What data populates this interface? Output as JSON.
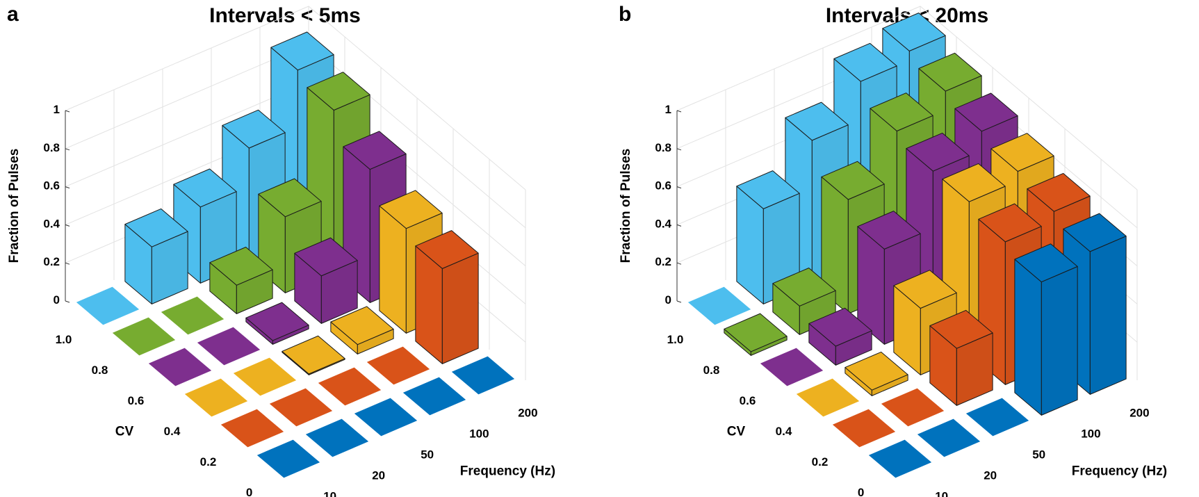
{
  "chart_data": [
    {
      "type": "bar3d",
      "panel_label": "a",
      "title": "Intervals < 5ms",
      "xlabel": "Frequency (Hz)",
      "ylabel": "CV",
      "zlabel": "Fraction of Pulses",
      "x_categories": [
        "10",
        "20",
        "50",
        "100",
        "200"
      ],
      "y_categories": [
        "1.0",
        "0.8",
        "0.6",
        "0.4",
        "0.2",
        "0"
      ],
      "z_ticks": [
        "0",
        "0.2",
        "0.4",
        "0.6",
        "0.8",
        "1"
      ],
      "zlim": [
        0,
        1
      ],
      "grid": true,
      "values": [
        [
          0,
          0.3,
          0.4,
          0.6,
          0.9
        ],
        [
          0,
          0,
          0.15,
          0.4,
          0.85
        ],
        [
          0,
          0,
          0.02,
          0.25,
          0.7
        ],
        [
          0,
          0,
          0.005,
          0.05,
          0.55
        ],
        [
          0,
          0,
          0,
          0,
          0.5
        ],
        [
          0,
          0,
          0,
          0,
          0
        ]
      ]
    },
    {
      "type": "bar3d",
      "panel_label": "b",
      "title": "Intervals < 20ms",
      "xlabel": "Frequency (Hz)",
      "ylabel": "CV",
      "zlabel": "Fraction of Pulses",
      "x_categories": [
        "10",
        "20",
        "50",
        "100",
        "200"
      ],
      "y_categories": [
        "1.0",
        "0.8",
        "0.6",
        "0.4",
        "0.2",
        "0"
      ],
      "z_ticks": [
        "0",
        "0.2",
        "0.4",
        "0.6",
        "0.8",
        "1"
      ],
      "zlim": [
        0,
        1
      ],
      "grid": true,
      "values": [
        [
          0,
          0.5,
          0.75,
          0.95,
          1.0
        ],
        [
          0.02,
          0.15,
          0.6,
          0.85,
          0.95
        ],
        [
          0,
          0.1,
          0.5,
          0.8,
          0.9
        ],
        [
          0,
          0.03,
          0.35,
          0.8,
          0.85
        ],
        [
          0,
          0,
          0.3,
          0.75,
          0.8
        ],
        [
          0,
          0,
          0,
          0.7,
          0.75
        ]
      ]
    }
  ],
  "row_colors": [
    "#4DBEEE",
    "#77AC30",
    "#7E2F8E",
    "#EDB120",
    "#D95319",
    "#0072BD"
  ]
}
